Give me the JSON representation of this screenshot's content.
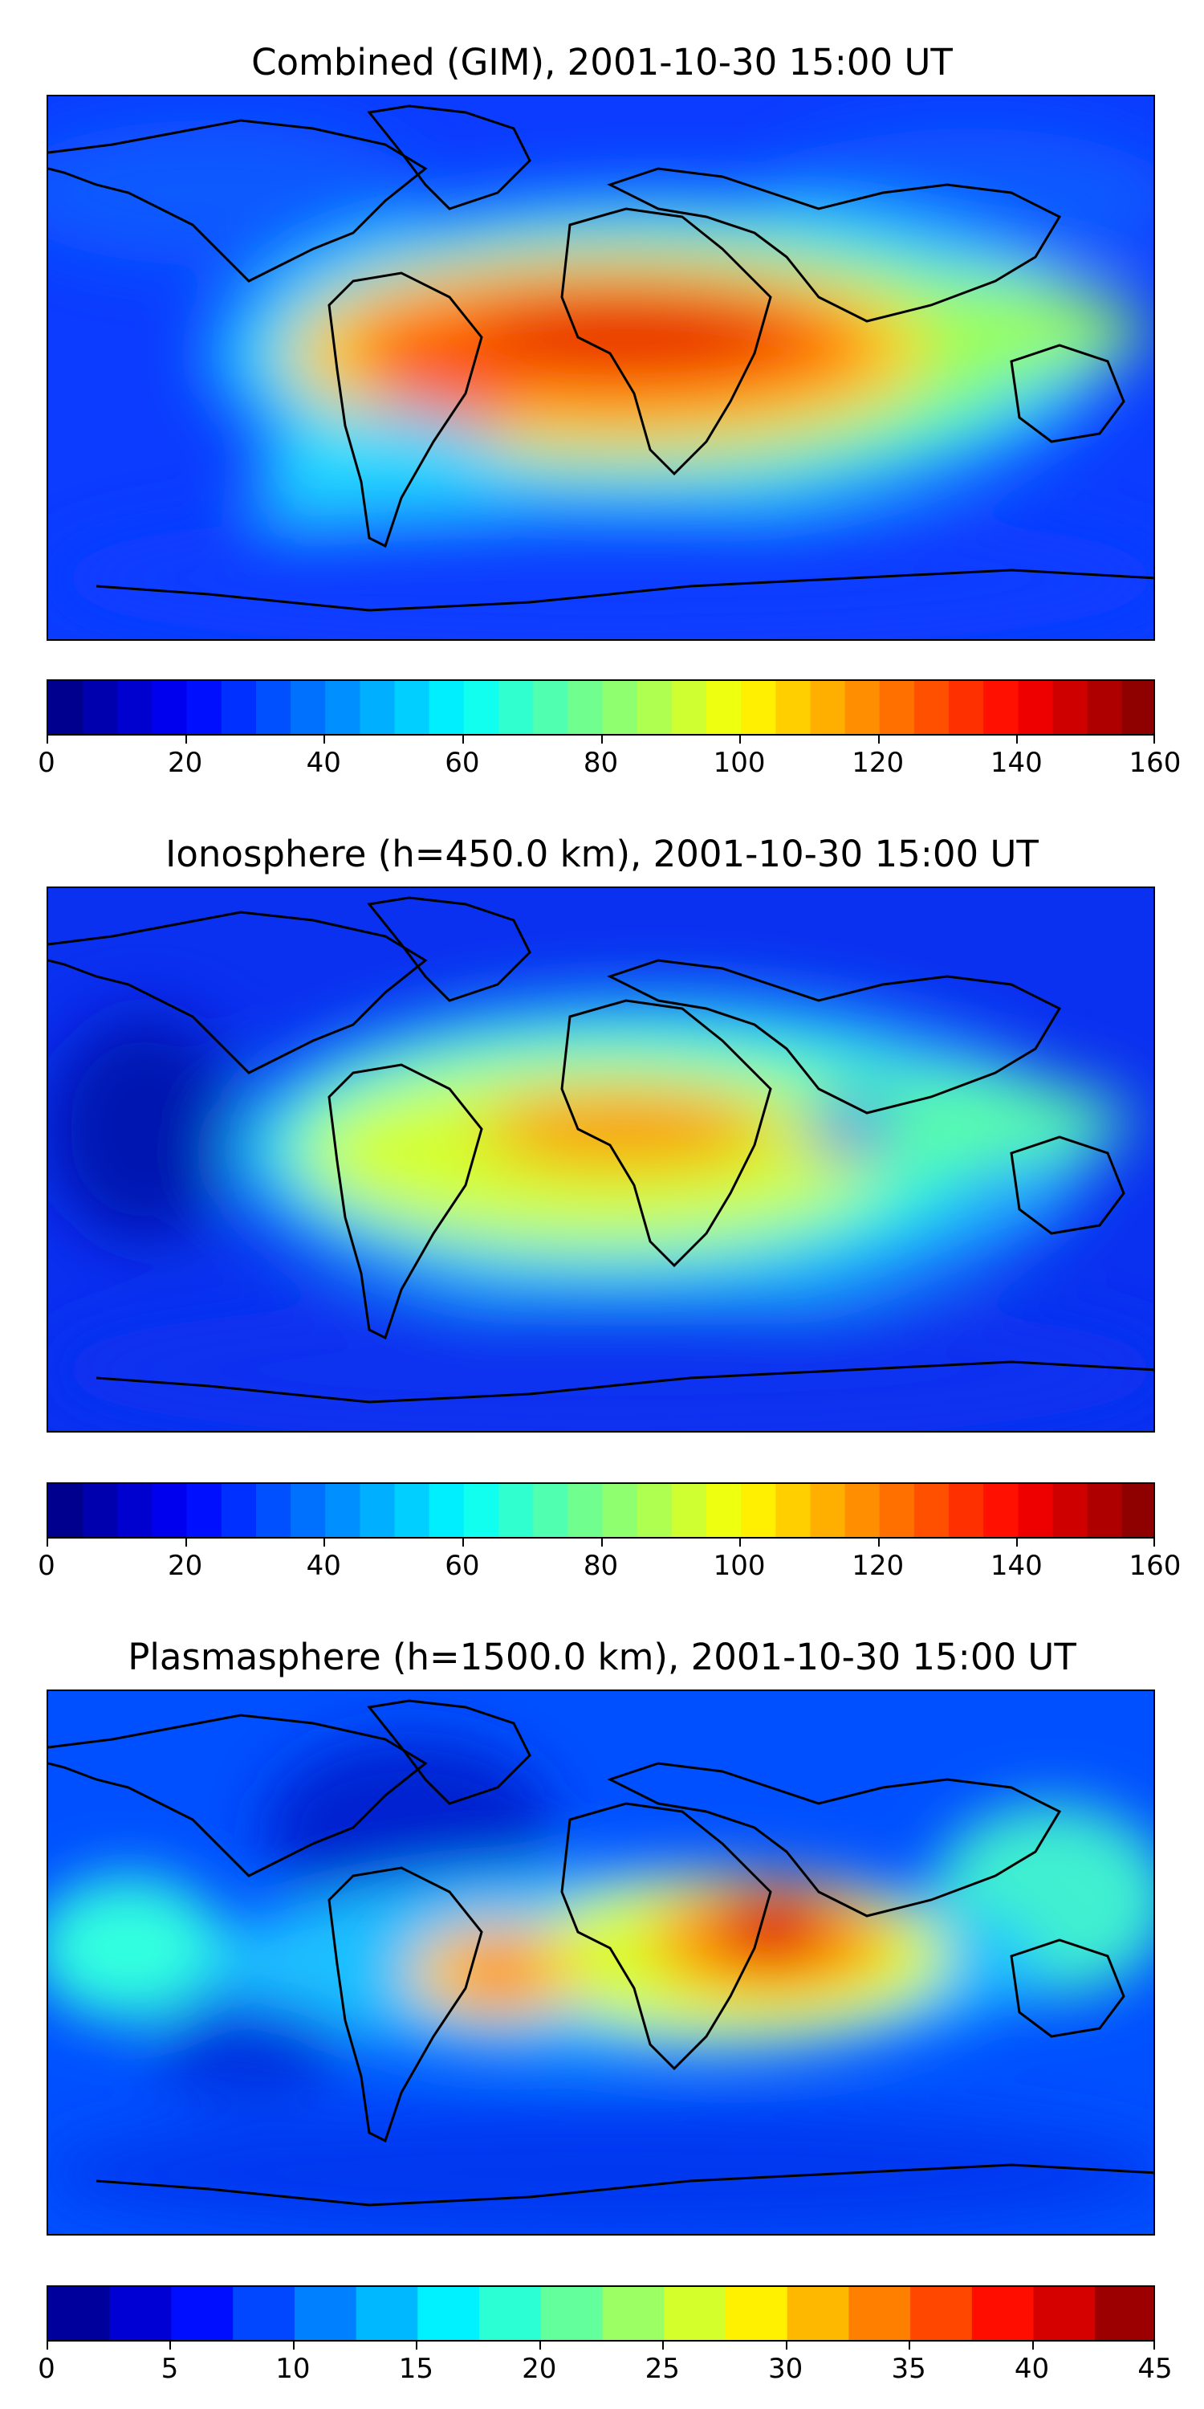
{
  "chart_data": [
    {
      "type": "heatmap",
      "title": "Combined (GIM), 2001-10-30 15:00 UT",
      "colorbar": {
        "range": [
          0,
          160
        ],
        "levels": 32,
        "ticks": [
          "0",
          "20",
          "40",
          "60",
          "80",
          "100",
          "120",
          "140",
          "160"
        ]
      },
      "colormap": "jet",
      "hotspots": [
        {
          "region": "tropical Atlantic / northern Africa",
          "value": 145
        },
        {
          "region": "South America",
          "value": 125
        },
        {
          "region": "central Africa",
          "value": 120
        },
        {
          "region": "Indian Ocean / South Asia",
          "value": 85
        }
      ],
      "background_value": 25
    },
    {
      "type": "heatmap",
      "title": "Ionosphere  (h=450.0 km), 2001-10-30 15:00 UT",
      "colorbar": {
        "range": [
          0,
          160
        ],
        "levels": 32,
        "ticks": [
          "0",
          "20",
          "40",
          "60",
          "80",
          "100",
          "120",
          "140",
          "160"
        ]
      },
      "colormap": "jet",
      "hotspots": [
        {
          "region": "northern Africa",
          "value": 120
        },
        {
          "region": "South America",
          "value": 100
        },
        {
          "region": "central Africa",
          "value": 95
        },
        {
          "region": "South Asia",
          "value": 70
        }
      ],
      "background_value": 15
    },
    {
      "type": "heatmap",
      "title": "Plasmasphere (h=1500.0 km), 2001-10-30 15:00 UT",
      "colorbar": {
        "range": [
          0,
          45
        ],
        "levels": 18,
        "ticks": [
          "0",
          "5",
          "10",
          "15",
          "20",
          "25",
          "30",
          "35",
          "40",
          "45"
        ]
      },
      "colormap": "jet",
      "hotspots": [
        {
          "region": "Arabian Peninsula",
          "value": 40
        },
        {
          "region": "eastern South America",
          "value": 33
        },
        {
          "region": "North Pacific",
          "value": 18
        },
        {
          "region": "western Pacific",
          "value": 20
        }
      ],
      "background_value": 8
    }
  ]
}
